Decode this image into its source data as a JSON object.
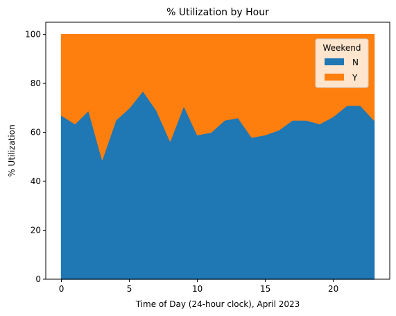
{
  "chart_data": {
    "type": "area",
    "stacked": true,
    "title": "% Utilization by Hour",
    "xlabel": "Time of Day (24-hour clock), April 2023",
    "ylabel": "% Utilization",
    "x": [
      0,
      1,
      2,
      3,
      4,
      5,
      6,
      7,
      8,
      9,
      10,
      11,
      12,
      13,
      14,
      15,
      16,
      17,
      18,
      19,
      20,
      21,
      22,
      23
    ],
    "xlim": [
      -1.15,
      24.15
    ],
    "ylim": [
      0,
      105
    ],
    "xticks": [
      0,
      5,
      10,
      15,
      20
    ],
    "yticks": [
      0,
      20,
      40,
      60,
      80,
      100
    ],
    "series": [
      {
        "name": "N",
        "color": "#1f77b4",
        "values": [
          67,
          63.5,
          69,
          49,
          65,
          70,
          77,
          69,
          56.5,
          71,
          59,
          60,
          65,
          66,
          58,
          59,
          61,
          65,
          65,
          63.5,
          66.5,
          71,
          71,
          65
        ]
      },
      {
        "name": "Y",
        "color": "#ff7f0e",
        "values": [
          33,
          36.5,
          31,
          51,
          35,
          30,
          23,
          31,
          43.5,
          29,
          41,
          40,
          35,
          34,
          42,
          41,
          39,
          35,
          35,
          36.5,
          33.5,
          29,
          29,
          35
        ]
      }
    ],
    "grid": false,
    "legend": {
      "title": "Weekend",
      "position": "top-right"
    }
  }
}
